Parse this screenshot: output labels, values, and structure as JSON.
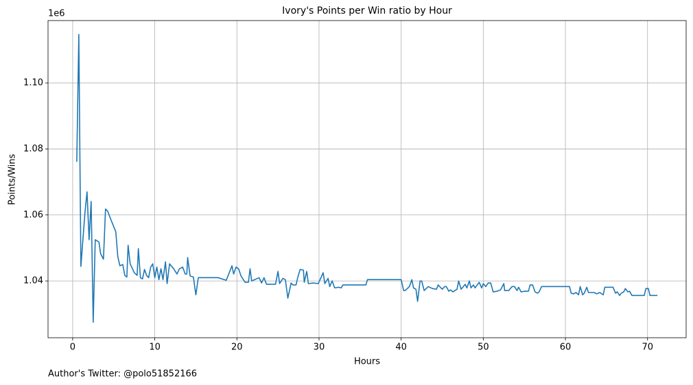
{
  "chart_data": {
    "type": "line",
    "title": "Ivory's Points per Win ratio by Hour",
    "x_label": "Hours",
    "y_label": "Points/Wins",
    "y_offset_label": "1e6",
    "footer": "Author's Twitter: @polo51852166",
    "grid": true,
    "color": "#1f77b4",
    "xlim": [
      -3.0,
      74.7
    ],
    "ylim": [
      1.0228,
      1.1189
    ],
    "xticks": [
      0,
      10,
      20,
      30,
      40,
      50,
      60,
      70
    ],
    "yticks": [
      1.04,
      1.06,
      1.08,
      {
        "value": 1.1,
        "label": "1.10"
      }
    ],
    "x": [
      0.5,
      0.75,
      1.0,
      1.5,
      1.75,
      2.0,
      2.25,
      2.5,
      2.75,
      3.2,
      3.4,
      3.75,
      4.0,
      4.25,
      4.7,
      5.25,
      5.5,
      5.75,
      6.1,
      6.35,
      6.6,
      6.75,
      7.0,
      7.5,
      7.85,
      8.0,
      8.25,
      8.5,
      8.75,
      9.0,
      9.25,
      9.5,
      9.75,
      10.0,
      10.25,
      10.5,
      10.75,
      11.0,
      11.3,
      11.5,
      11.8,
      12.3,
      12.7,
      13.0,
      13.4,
      13.7,
      13.9,
      14.0,
      14.3,
      14.7,
      15.0,
      15.3,
      17.7,
      18.7,
      19.4,
      19.6,
      19.9,
      20.2,
      20.5,
      21.0,
      21.4,
      21.6,
      21.8,
      22.7,
      23.0,
      23.3,
      23.6,
      24.7,
      25.0,
      25.2,
      25.6,
      25.9,
      26.2,
      26.6,
      26.8,
      27.2,
      27.4,
      27.7,
      28.1,
      28.2,
      28.5,
      28.7,
      29.3,
      29.9,
      30.2,
      30.5,
      30.7,
      31.1,
      31.3,
      31.6,
      31.9,
      32.4,
      32.7,
      32.9,
      35.7,
      35.9,
      40.0,
      40.3,
      40.5,
      41.0,
      41.3,
      41.5,
      41.8,
      42.0,
      42.3,
      42.5,
      42.8,
      43.3,
      43.8,
      44.3,
      44.5,
      45.0,
      45.3,
      45.5,
      45.8,
      46.0,
      46.3,
      46.8,
      47.0,
      47.3,
      47.8,
      48.0,
      48.3,
      48.5,
      48.8,
      49.0,
      49.5,
      49.8,
      50.0,
      50.3,
      50.6,
      50.9,
      51.2,
      51.7,
      52.1,
      52.5,
      52.6,
      53.1,
      53.5,
      53.8,
      54.1,
      54.3,
      54.6,
      55.1,
      55.5,
      55.7,
      56.0,
      56.3,
      56.6,
      56.8,
      57.1,
      60.5,
      60.7,
      61.0,
      61.3,
      61.6,
      61.8,
      62.1,
      62.3,
      62.6,
      62.8,
      63.5,
      63.8,
      64.2,
      64.6,
      64.8,
      65.8,
      66.1,
      66.3,
      66.6,
      66.8,
      67.1,
      67.3,
      67.6,
      67.8,
      68.1,
      69.6,
      69.8,
      70.1,
      70.3,
      71.2
    ],
    "series": [
      {
        "name": "Points/Wins",
        "color": "#1f77b4",
        "values": [
          1.0761,
          1.1147,
          1.0444,
          1.0608,
          1.067,
          1.0525,
          1.0641,
          1.0275,
          1.0525,
          1.0518,
          1.0483,
          1.0466,
          1.0618,
          1.0612,
          1.0583,
          1.0549,
          1.0473,
          1.0446,
          1.045,
          1.0417,
          1.0412,
          1.0508,
          1.0452,
          1.0425,
          1.0417,
          1.0498,
          1.041,
          1.0406,
          1.0435,
          1.0417,
          1.041,
          1.0442,
          1.0452,
          1.041,
          1.0442,
          1.0404,
          1.0437,
          1.0404,
          1.0458,
          1.0392,
          1.0452,
          1.0437,
          1.0421,
          1.0437,
          1.0442,
          1.0421,
          1.0421,
          1.0471,
          1.0415,
          1.0412,
          1.0358,
          1.041,
          1.041,
          1.0402,
          1.0446,
          1.0421,
          1.0442,
          1.0437,
          1.0415,
          1.0396,
          1.0396,
          1.0437,
          1.04,
          1.041,
          1.0394,
          1.041,
          1.039,
          1.039,
          1.0429,
          1.0392,
          1.0408,
          1.0404,
          1.0348,
          1.0394,
          1.0388,
          1.0388,
          1.041,
          1.0435,
          1.0433,
          1.0396,
          1.0429,
          1.0392,
          1.0394,
          1.0392,
          1.0408,
          1.0425,
          1.0392,
          1.0408,
          1.0383,
          1.04,
          1.0379,
          1.0381,
          1.0379,
          1.0388,
          1.0388,
          1.0404,
          1.0404,
          1.0371,
          1.0371,
          1.0383,
          1.0404,
          1.0379,
          1.0375,
          1.0338,
          1.04,
          1.04,
          1.0371,
          1.0383,
          1.0377,
          1.0375,
          1.0388,
          1.0375,
          1.0383,
          1.0383,
          1.0369,
          1.0373,
          1.0367,
          1.0375,
          1.04,
          1.0375,
          1.039,
          1.0379,
          1.04,
          1.0379,
          1.0388,
          1.0379,
          1.0396,
          1.0379,
          1.0392,
          1.0383,
          1.0394,
          1.0394,
          1.0367,
          1.0369,
          1.0373,
          1.0392,
          1.0371,
          1.0371,
          1.0383,
          1.0383,
          1.0371,
          1.0381,
          1.0367,
          1.0369,
          1.0369,
          1.0388,
          1.0388,
          1.0367,
          1.0363,
          1.0367,
          1.0383,
          1.0383,
          1.0363,
          1.0361,
          1.0365,
          1.0358,
          1.0383,
          1.0358,
          1.0363,
          1.0381,
          1.0365,
          1.0365,
          1.0361,
          1.0365,
          1.0358,
          1.0381,
          1.0381,
          1.0363,
          1.0367,
          1.0356,
          1.0363,
          1.0367,
          1.0377,
          1.0367,
          1.0369,
          1.0356,
          1.0356,
          1.0377,
          1.0377,
          1.0356,
          1.0356
        ]
      }
    ]
  }
}
